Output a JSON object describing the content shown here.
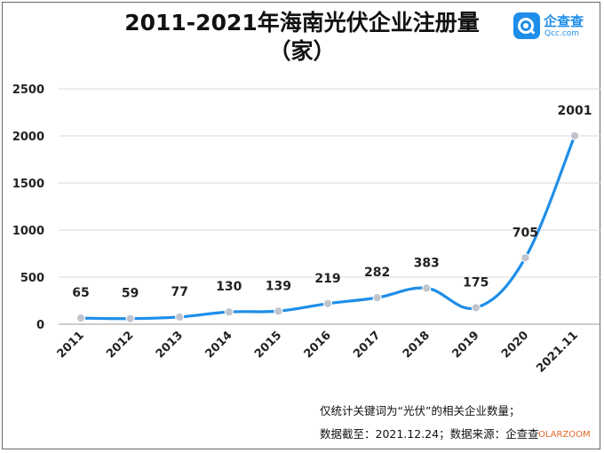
{
  "logo": {
    "text": "企查查",
    "subtext": "Qcc.com",
    "color": "#1f8ee8"
  },
  "footnotes": [
    "仅统计关键词为“光伏”的相关企业数量；",
    "数据截至：2021.12.24；数据来源：企查查"
  ],
  "watermark": "OLARZOOM",
  "colors": {
    "line": "#1f8ee8",
    "marker": "#c0c4cc",
    "grid": "#d9d9d9"
  },
  "chart_data": {
    "type": "line",
    "title": "2011-2021年海南光伏企业注册量",
    "subtitle": "（家）",
    "categories": [
      "2011",
      "2012",
      "2013",
      "2014",
      "2015",
      "2016",
      "2017",
      "2018",
      "2019",
      "2020",
      "2021.11"
    ],
    "values": [
      65,
      59,
      77,
      130,
      139,
      219,
      282,
      383,
      175,
      705,
      2001
    ],
    "yticks": [
      0,
      500,
      1000,
      1500,
      2000,
      2500
    ],
    "ylim": [
      0,
      2500
    ],
    "grid": true,
    "legend": "none"
  }
}
